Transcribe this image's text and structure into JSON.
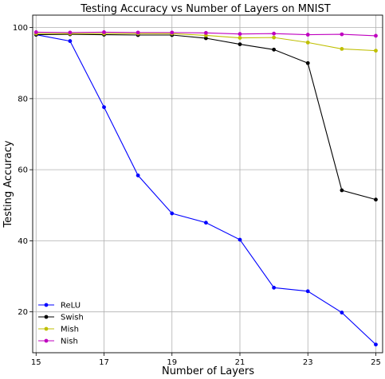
{
  "chart_data": {
    "type": "line",
    "title": "Testing Accuracy vs Number of Layers on MNIST",
    "xlabel": "Number of Layers",
    "ylabel": "Testing Accuracy",
    "x": [
      15,
      16,
      17,
      18,
      19,
      20,
      21,
      22,
      23,
      24,
      25
    ],
    "xticks": [
      15,
      17,
      19,
      21,
      23,
      25
    ],
    "yticks": [
      20,
      40,
      60,
      80,
      100
    ],
    "xlim": [
      14.9,
      25.2
    ],
    "ylim": [
      8.5,
      103.5
    ],
    "grid": true,
    "legend_position": "lower-left",
    "series": [
      {
        "name": "ReLU",
        "color": "#0000ff",
        "values": [
          98.0,
          96.2,
          77.6,
          58.4,
          47.7,
          45.1,
          40.3,
          26.8,
          25.8,
          19.8,
          10.8
        ]
      },
      {
        "name": "Swish",
        "color": "#000000",
        "values": [
          98.0,
          98.1,
          98.0,
          97.9,
          97.9,
          97.0,
          95.3,
          93.8,
          90.0,
          54.2,
          51.6
        ]
      },
      {
        "name": "Mish",
        "color": "#bfbf00",
        "values": [
          98.3,
          98.3,
          98.3,
          98.3,
          98.3,
          97.8,
          97.1,
          97.2,
          95.8,
          94.0,
          93.5
        ]
      },
      {
        "name": "Nish",
        "color": "#bf00bf",
        "values": [
          98.7,
          98.6,
          98.7,
          98.6,
          98.6,
          98.5,
          98.2,
          98.3,
          98.0,
          98.1,
          97.7
        ]
      }
    ]
  }
}
